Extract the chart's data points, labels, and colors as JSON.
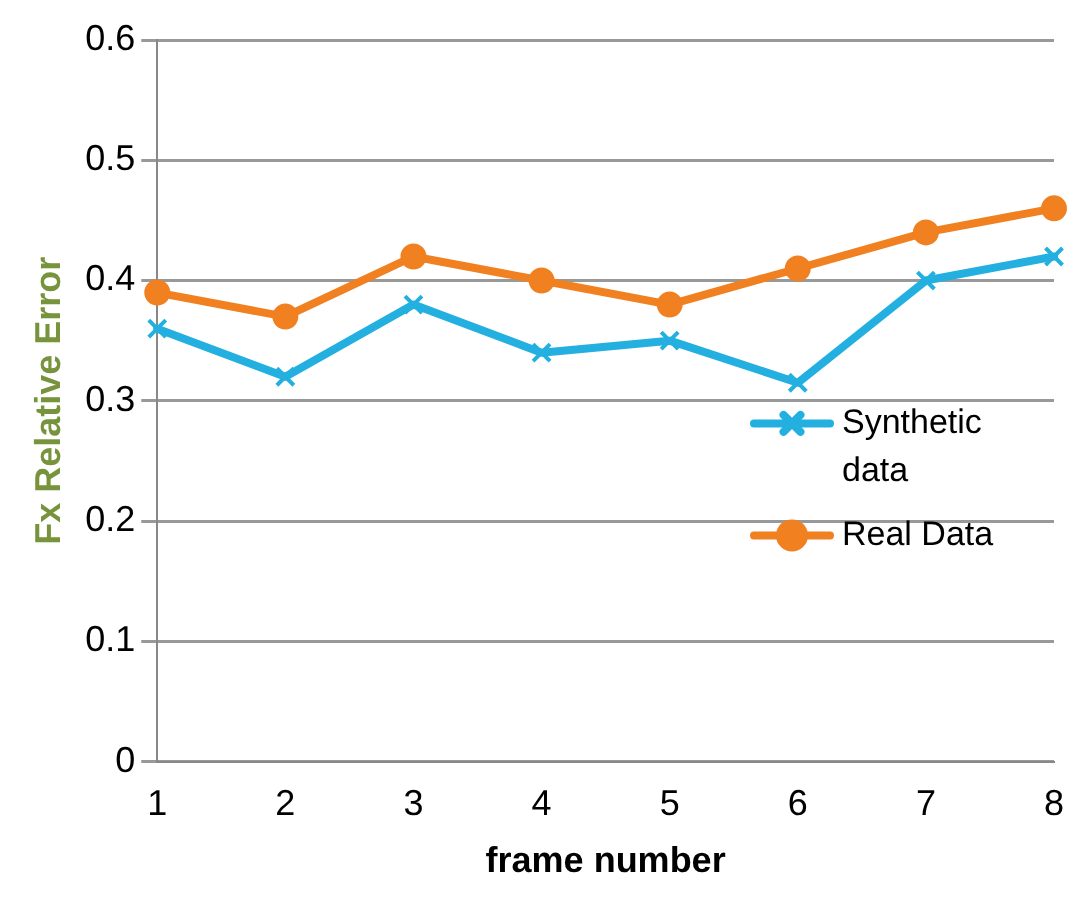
{
  "chart_data": {
    "type": "line",
    "xlabel": "frame number",
    "ylabel": "Fx Relative Error",
    "categories": [
      "1",
      "2",
      "3",
      "4",
      "5",
      "6",
      "7",
      "8"
    ],
    "series": [
      {
        "name": "Synthetic data",
        "color": "#23b0e0",
        "marker": "cross",
        "values": [
          0.36,
          0.32,
          0.38,
          0.34,
          0.35,
          0.315,
          0.4,
          0.42
        ]
      },
      {
        "name": "Real Data",
        "color": "#f08020",
        "marker": "circle",
        "values": [
          0.39,
          0.37,
          0.42,
          0.4,
          0.38,
          0.41,
          0.44,
          0.46
        ]
      }
    ],
    "ylim": [
      0,
      0.6
    ],
    "yticks": [
      0,
      0.1,
      0.2,
      0.3,
      0.4,
      0.5,
      0.6
    ],
    "grid": "y",
    "legend": "right"
  }
}
